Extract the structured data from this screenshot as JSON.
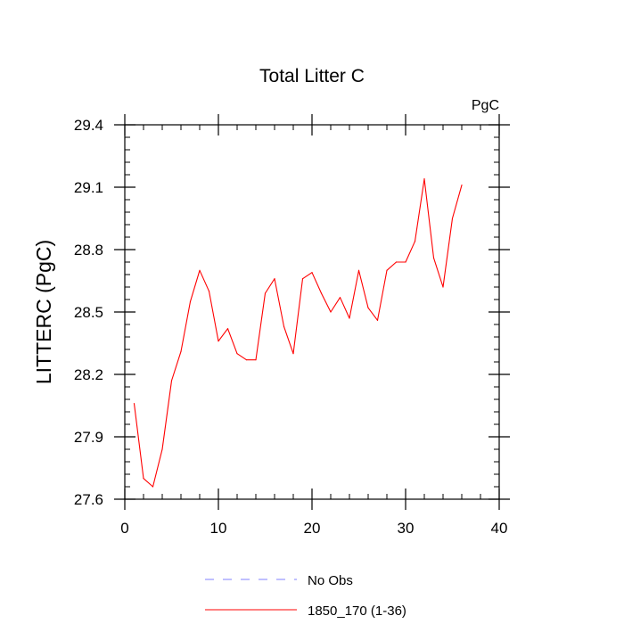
{
  "chart_data": {
    "type": "line",
    "title": "Total Litter C",
    "units_label": "PgC",
    "xlabel": "",
    "ylabel": "LITTERC  (PgC)",
    "xlim": [
      0,
      40
    ],
    "ylim": [
      27.6,
      29.4
    ],
    "x_ticks": [
      0,
      10,
      20,
      30,
      40
    ],
    "x_tick_labels": [
      "0",
      "10",
      "20",
      "30",
      "40"
    ],
    "x_minor_step": 2,
    "y_ticks": [
      27.6,
      27.9,
      28.2,
      28.5,
      28.8,
      29.1,
      29.4
    ],
    "y_tick_labels": [
      "27.6",
      "27.9",
      "28.2",
      "28.5",
      "28.8",
      "29.1",
      "29.4"
    ],
    "y_minor_step": 0.06,
    "grid": false,
    "legend_position": "bottom",
    "legend": [
      {
        "name": "No Obs",
        "color": "#8080ff",
        "dash": "dashed"
      },
      {
        "name": "1850_170 (1-36)",
        "color": "#ff0000",
        "dash": "solid"
      }
    ],
    "series": [
      {
        "name": "1850_170 (1-36)",
        "color": "#ff0000",
        "x": [
          1,
          2,
          3,
          4,
          5,
          6,
          7,
          8,
          9,
          10,
          11,
          12,
          13,
          14,
          15,
          16,
          17,
          18,
          19,
          20,
          21,
          22,
          23,
          24,
          25,
          26,
          27,
          28,
          29,
          30,
          31,
          32,
          33,
          34,
          35,
          36
        ],
        "y": [
          28.06,
          27.7,
          27.66,
          27.84,
          28.17,
          28.31,
          28.55,
          28.7,
          28.6,
          28.36,
          28.42,
          28.3,
          28.27,
          28.27,
          28.59,
          28.66,
          28.43,
          28.3,
          28.66,
          28.69,
          28.59,
          28.5,
          28.57,
          28.47,
          28.7,
          28.52,
          28.46,
          28.7,
          28.74,
          28.74,
          28.84,
          29.14,
          28.76,
          28.62,
          28.95,
          29.11
        ]
      }
    ]
  }
}
